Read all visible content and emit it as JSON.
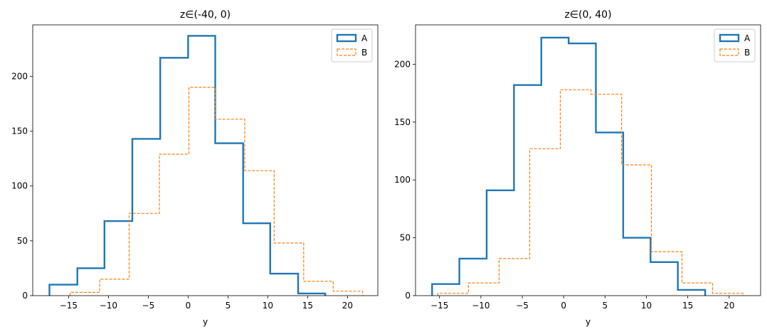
{
  "chart_data": [
    {
      "type": "histogram",
      "title": "z∈(-40, 0)",
      "xlabel": "y",
      "ylabel": "",
      "xlim": [
        -19.5,
        23.8
      ],
      "ylim": [
        0,
        247
      ],
      "xticks": [
        -15,
        -10,
        -5,
        0,
        5,
        10,
        15,
        20
      ],
      "yticks": [
        0,
        50,
        100,
        150,
        200
      ],
      "grid": false,
      "legend_position": "top-right",
      "series": [
        {
          "name": "A",
          "color": "#1f77b4",
          "style": "solid",
          "bin_edges": [
            -17.4,
            -13.9,
            -10.5,
            -7.0,
            -3.5,
            0.0,
            3.4,
            6.9,
            10.3,
            13.8,
            17.2
          ],
          "counts": [
            10,
            25,
            68,
            143,
            217,
            237,
            139,
            66,
            20,
            2
          ]
        },
        {
          "name": "B",
          "color": "#ff7f0e",
          "style": "dashed",
          "bin_edges": [
            -14.8,
            -11.1,
            -7.4,
            -3.6,
            0.1,
            3.4,
            7.1,
            10.8,
            14.5,
            18.2,
            21.9
          ],
          "counts": [
            3,
            15,
            75,
            129,
            190,
            161,
            114,
            48,
            13,
            4
          ]
        }
      ]
    },
    {
      "type": "histogram",
      "title": "z∈(0, 40)",
      "xlabel": "y",
      "ylabel": "",
      "xlim": [
        -17.9,
        23.8
      ],
      "ylim": [
        0,
        234
      ],
      "xticks": [
        -15,
        -10,
        -5,
        0,
        5,
        10,
        15,
        20
      ],
      "yticks": [
        0,
        50,
        100,
        150,
        200
      ],
      "grid": false,
      "legend_position": "top-right",
      "series": [
        {
          "name": "A",
          "color": "#1f77b4",
          "style": "solid",
          "bin_edges": [
            -15.9,
            -12.6,
            -9.3,
            -6.0,
            -2.7,
            0.6,
            3.9,
            7.2,
            10.5,
            13.8,
            17.1
          ],
          "counts": [
            10,
            32,
            91,
            182,
            223,
            218,
            141,
            50,
            29,
            5
          ]
        },
        {
          "name": "B",
          "color": "#ff7f0e",
          "style": "dashed",
          "bin_edges": [
            -15.2,
            -11.5,
            -7.8,
            -4.1,
            -0.4,
            3.3,
            7.0,
            10.6,
            14.3,
            18.0,
            21.7
          ],
          "counts": [
            2,
            11,
            32,
            127,
            178,
            174,
            113,
            38,
            11,
            2
          ]
        }
      ]
    }
  ]
}
